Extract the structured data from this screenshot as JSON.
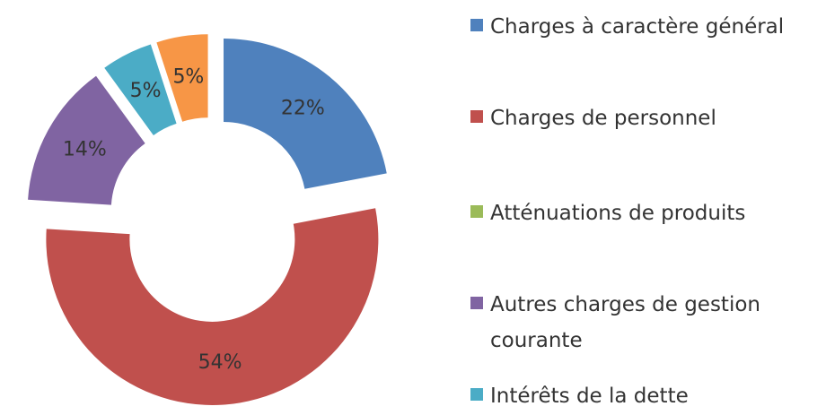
{
  "chart_data": {
    "type": "doughnut",
    "categories": [
      "Charges à caractère général",
      "Charges de personnel",
      "Atténuations de produits",
      "Autres charges de gestion courante",
      "Intérêts de la dette",
      null
    ],
    "values": [
      22,
      54,
      0,
      14,
      5,
      5
    ],
    "value_labels": [
      "22%",
      "54%",
      null,
      "14%",
      "5%",
      "5%"
    ],
    "colors": [
      "#4f81bd",
      "#c0504d",
      "#9bbb59",
      "#8064a2",
      "#4bacc6",
      "#f79646"
    ],
    "legend": "right"
  }
}
